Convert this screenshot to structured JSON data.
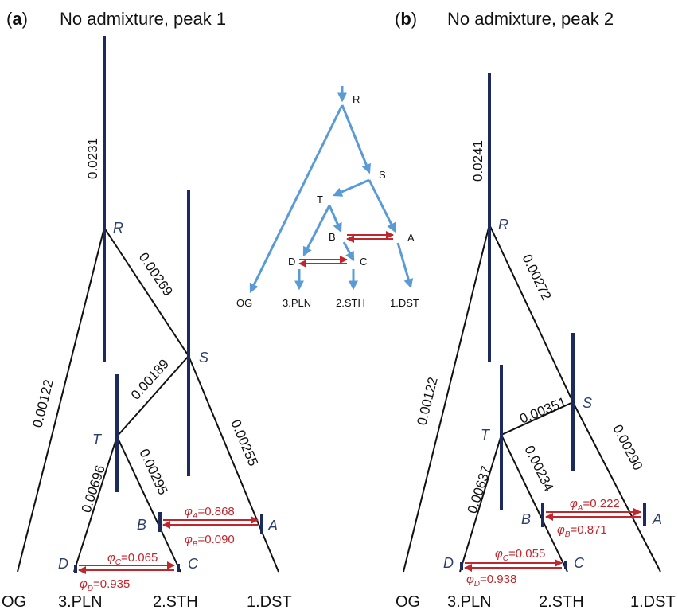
{
  "panel_a": {
    "tag": "a",
    "title": "No admixture, peak 1",
    "leaves": [
      "OG",
      "3.PLN",
      "2.STH",
      "1.DST"
    ],
    "nodes": {
      "R": "R",
      "S": "S",
      "T": "T",
      "A": "A",
      "B": "B",
      "C": "C",
      "D": "D"
    },
    "branch_lengths": {
      "root": "0.0231",
      "R_S": "0.00269",
      "R_OG": "0.00122",
      "S_T": "0.00189",
      "S_A": "0.00255",
      "T_B": "0.00295",
      "T_D": "0.00696"
    },
    "phi": {
      "A": {
        "sym": "φ",
        "sub": "A",
        "val": "=0.868"
      },
      "B": {
        "sym": "φ",
        "sub": "B",
        "val": "=0.090"
      },
      "C": {
        "sym": "φ",
        "sub": "C",
        "val": "=0.065"
      },
      "D": {
        "sym": "φ",
        "sub": "D",
        "val": "=0.935"
      }
    }
  },
  "panel_b": {
    "tag": "b",
    "title": "No admixture, peak 2",
    "leaves": [
      "OG",
      "3.PLN",
      "2.STH",
      "1.DST"
    ],
    "nodes": {
      "R": "R",
      "S": "S",
      "T": "T",
      "A": "A",
      "B": "B",
      "C": "C",
      "D": "D"
    },
    "branch_lengths": {
      "root": "0.0241",
      "R_S": "0.00272",
      "R_OG": "0.00122",
      "T_S": "0.00351",
      "S_A": "0.00290",
      "T_B": "0.00234",
      "T_D": "0.00637"
    },
    "phi": {
      "A": {
        "sym": "φ",
        "sub": "A",
        "val": "=0.222"
      },
      "B": {
        "sym": "φ",
        "sub": "B",
        "val": "=0.871"
      },
      "C": {
        "sym": "φ",
        "sub": "C",
        "val": "=0.055"
      },
      "D": {
        "sym": "φ",
        "sub": "D",
        "val": "=0.938"
      }
    }
  },
  "inset": {
    "nodes": [
      "R",
      "S",
      "T",
      "B",
      "A",
      "D",
      "C"
    ],
    "leaves": [
      "OG",
      "3.PLN",
      "2.STH",
      "1.DST"
    ]
  },
  "colors": {
    "tree": "#111111",
    "bar": "#1c2a5c",
    "node_label": "#2c3e6b",
    "admix_arrow": "#c0272d",
    "inset_edge": "#5b9bd5"
  }
}
